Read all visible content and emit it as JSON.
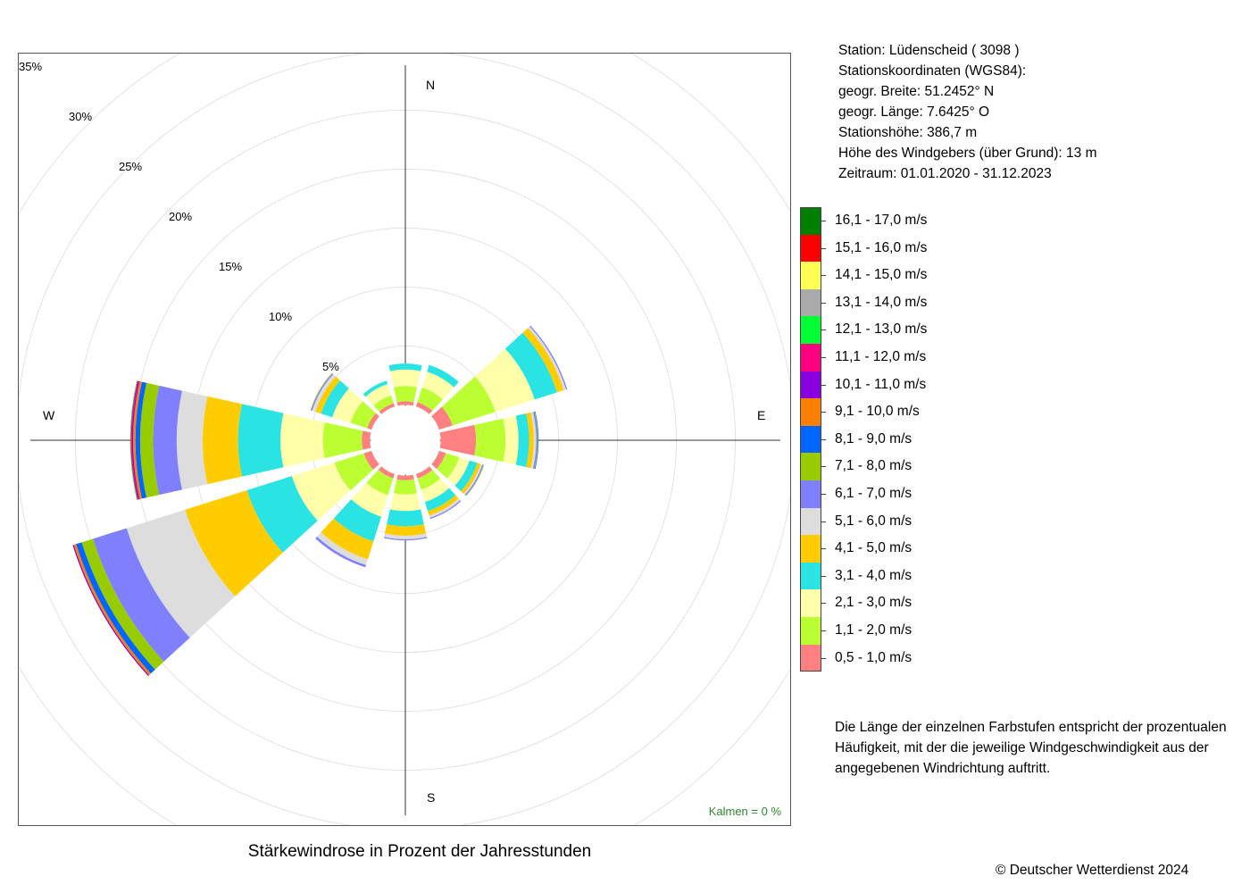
{
  "station": {
    "line_station": "Station:  Lüdenscheid  ( 3098 )",
    "line_coords": "Stationskoordinaten (WGS84):",
    "line_lat": "geogr. Breite: 51.2452° N",
    "line_lon": "geogr. Länge:   7.6425° O",
    "line_elev": "Stationshöhe: 386,7 m",
    "line_sensor": "Höhe des Windgebers (über Grund): 13 m",
    "line_period": "Zeitraum: 01.01.2020 - 31.12.2023"
  },
  "description": "Die Länge der einzelnen Farbstufen entspricht der prozentualen Häufigkeit, mit der die jeweilige Windgeschwindigkeit aus der angegebenen Windrichtung auftritt.",
  "copyright": "© Deutscher Wetterdienst  2024",
  "calm": "Kalmen  =  0 %",
  "chart_data": {
    "type": "windrose",
    "title": "Stärkewindrose in Prozent der Jahresstunden",
    "cardinals": {
      "N": "N",
      "E": "E",
      "S": "S",
      "W": "W"
    },
    "ring_labels": [
      "5%",
      "10%",
      "15%",
      "20%",
      "25%",
      "30%",
      "35%"
    ],
    "ring_values": [
      5,
      10,
      15,
      20,
      25,
      30,
      35
    ],
    "grid": true,
    "legend_position": "right",
    "speed_classes": [
      {
        "label": "0,5 - 1,0 m/s",
        "color": "#ff8080"
      },
      {
        "label": "1,1 - 2,0 m/s",
        "color": "#bbff33"
      },
      {
        "label": "2,1 - 3,0 m/s",
        "color": "#ffffaa"
      },
      {
        "label": "3,1 - 4,0 m/s",
        "color": "#2ae3e3"
      },
      {
        "label": "4,1 - 5,0 m/s",
        "color": "#ffcc00"
      },
      {
        "label": "5,1 - 6,0 m/s",
        "color": "#dddddd"
      },
      {
        "label": "6,1 - 7,0 m/s",
        "color": "#8080ff"
      },
      {
        "label": "7,1 - 8,0 m/s",
        "color": "#99cc00"
      },
      {
        "label": "8,1 - 9,0 m/s",
        "color": "#0066ff"
      },
      {
        "label": "9,1 - 10,0 m/s",
        "color": "#ff8000"
      },
      {
        "label": "10,1 - 11,0 m/s",
        "color": "#8800dd"
      },
      {
        "label": "11,1 - 12,0 m/s",
        "color": "#ff0080"
      },
      {
        "label": "12,1 - 13,0 m/s",
        "color": "#00ff33"
      },
      {
        "label": "13,1 - 14,0 m/s",
        "color": "#aaaaaa"
      },
      {
        "label": "14,1 - 15,0 m/s",
        "color": "#ffff55"
      },
      {
        "label": "15,1 - 16,0 m/s",
        "color": "#ff0000"
      },
      {
        "label": "16,1 - 17,0 m/s",
        "color": "#008000"
      }
    ],
    "directions_deg": [
      0,
      30,
      60,
      90,
      120,
      150,
      180,
      210,
      240,
      270,
      300,
      330
    ],
    "inner_offset_percent": 3,
    "series": [
      {
        "direction": 0,
        "values": [
          0.3,
          1.3,
          1.4,
          0.5
        ]
      },
      {
        "direction": 30,
        "values": [
          0.4,
          1.3,
          1.4,
          0.6
        ]
      },
      {
        "direction": 60,
        "values": [
          1.2,
          3.8,
          3.5,
          2.0,
          0.6,
          0.2,
          0.1
        ]
      },
      {
        "direction": 90,
        "values": [
          3.0,
          2.5,
          1.1,
          0.9,
          0.4,
          0.2,
          0.1,
          0.05,
          0.05
        ]
      },
      {
        "direction": 120,
        "values": [
          0.6,
          1.2,
          0.9,
          0.7,
          0.3,
          0.15,
          0.1,
          0.05
        ]
      },
      {
        "direction": 150,
        "values": [
          0.4,
          1.0,
          1.1,
          0.8,
          0.4,
          0.2,
          0.1
        ]
      },
      {
        "direction": 180,
        "values": [
          0.4,
          1.2,
          1.4,
          1.3,
          0.8,
          0.3,
          0.1
        ]
      },
      {
        "direction": 210,
        "values": [
          0.4,
          1.5,
          1.9,
          2.2,
          1.6,
          0.5,
          0.2
        ]
      },
      {
        "direction": 240,
        "values": [
          0.7,
          2.6,
          3.8,
          4.0,
          5.5,
          5.2,
          3.0,
          1.0,
          0.5,
          0.2,
          0.1
        ]
      },
      {
        "direction": 270,
        "values": [
          0.7,
          3.3,
          3.6,
          3.6,
          3.0,
          2.2,
          2.0,
          1.1,
          0.4,
          0.2,
          0.1,
          0.1,
          0.05
        ]
      },
      {
        "direction": 300,
        "values": [
          0.4,
          1.5,
          1.6,
          1.0,
          0.5,
          0.3,
          0.1,
          0.05
        ]
      },
      {
        "direction": 330,
        "values": [
          0.3,
          0.7,
          1.0,
          0.3
        ]
      }
    ]
  }
}
